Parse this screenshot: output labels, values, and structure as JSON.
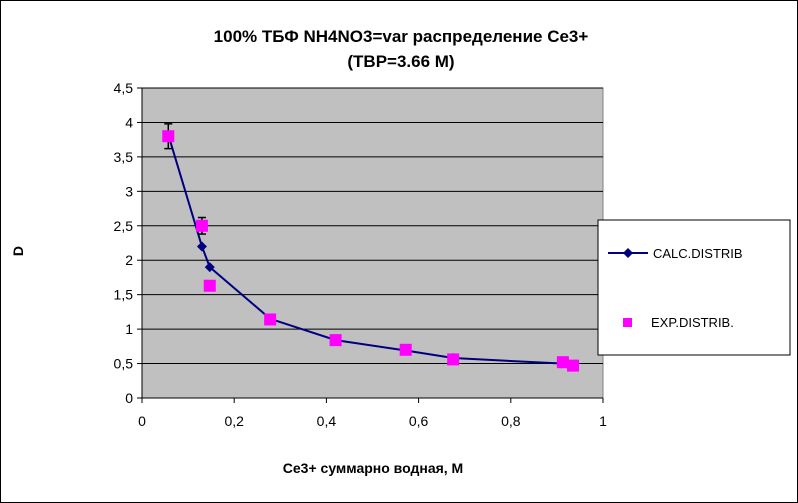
{
  "chart_data": {
    "type": "scatter",
    "title": "100%  ТБФ  NH4NO3=var распределение Ce3+",
    "subtitle": "(TBP=3.66 M)",
    "xlabel": "Ce3+ суммарно   водная, М",
    "ylabel": "D",
    "xlim": [
      0,
      1
    ],
    "ylim": [
      0,
      4.5
    ],
    "xticks": [
      "0",
      "0,2",
      "0,4",
      "0,6",
      "0,8",
      "1"
    ],
    "xtick_values": [
      0,
      0.2,
      0.4,
      0.6,
      0.8,
      1
    ],
    "yticks": [
      "0",
      "0,5",
      "1",
      "1,5",
      "2",
      "2,5",
      "3",
      "3,5",
      "4",
      "4,5"
    ],
    "ytick_values": [
      0,
      0.5,
      1,
      1.5,
      2,
      2.5,
      3,
      3.5,
      4,
      4.5
    ],
    "grid": "horizontal",
    "legend_placement": "right",
    "series": [
      {
        "name": "CALC.DISTRIB",
        "style": "line-diamond",
        "color": "#000080",
        "x": [
          0.058,
          0.13,
          0.147,
          0.278,
          0.42,
          0.572,
          0.675,
          0.91,
          0.935
        ],
        "y": [
          3.8,
          2.2,
          1.9,
          1.15,
          0.84,
          0.69,
          0.58,
          0.5,
          0.47
        ]
      },
      {
        "name": "EXP.DISTRIB.",
        "style": "square",
        "color": "#FF00FF",
        "x": [
          0.057,
          0.13,
          0.147,
          0.278,
          0.42,
          0.572,
          0.675,
          0.913,
          0.935
        ],
        "y": [
          3.8,
          2.5,
          1.63,
          1.14,
          0.84,
          0.7,
          0.56,
          0.52,
          0.47
        ],
        "error": [
          0.18,
          0.12,
          0,
          0,
          0,
          0,
          0,
          0,
          0
        ]
      }
    ]
  }
}
